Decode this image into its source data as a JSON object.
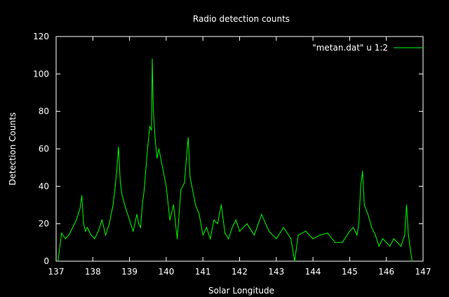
{
  "chart_data": {
    "type": "line",
    "title": "Radio detection counts",
    "xlabel": "Solar Longitude",
    "ylabel": "Detection Counts",
    "xlim": [
      137,
      147
    ],
    "ylim": [
      0,
      120
    ],
    "xticks": [
      "137",
      "138",
      "139",
      "140",
      "141",
      "142",
      "143",
      "144",
      "145",
      "146",
      "147"
    ],
    "yticks": [
      "0",
      "20",
      "40",
      "60",
      "80",
      "100",
      "120"
    ],
    "grid": false,
    "legend_position": "top-right",
    "series": [
      {
        "name": "\"metan.dat\" u 1:2",
        "color": "#00ff00",
        "x": [
          137.05,
          137.15,
          137.25,
          137.35,
          137.45,
          137.55,
          137.65,
          137.7,
          137.75,
          137.8,
          137.85,
          137.95,
          138.05,
          138.15,
          138.25,
          138.35,
          138.45,
          138.55,
          138.6,
          138.65,
          138.7,
          138.75,
          138.8,
          138.9,
          139.0,
          139.1,
          139.2,
          139.25,
          139.3,
          139.35,
          139.4,
          139.45,
          139.5,
          139.55,
          139.6,
          139.62,
          139.65,
          139.7,
          139.75,
          139.8,
          139.9,
          140.0,
          140.1,
          140.2,
          140.3,
          140.4,
          140.5,
          140.55,
          140.6,
          140.65,
          140.7,
          140.8,
          140.9,
          141.0,
          141.1,
          141.2,
          141.3,
          141.4,
          141.5,
          141.6,
          141.7,
          141.8,
          141.9,
          142.0,
          142.2,
          142.4,
          142.6,
          142.8,
          143.0,
          143.2,
          143.4,
          143.5,
          143.6,
          143.8,
          144.0,
          144.2,
          144.4,
          144.6,
          144.8,
          145.0,
          145.1,
          145.2,
          145.25,
          145.3,
          145.35,
          145.4,
          145.5,
          145.6,
          145.7,
          145.8,
          145.9,
          146.0,
          146.1,
          146.2,
          146.3,
          146.4,
          146.5,
          146.55,
          146.6,
          146.7
        ],
        "values": [
          0,
          15,
          12,
          14,
          18,
          22,
          28,
          35,
          20,
          16,
          18,
          14,
          12,
          16,
          22,
          14,
          20,
          30,
          38,
          48,
          61,
          42,
          35,
          28,
          22,
          16,
          25,
          20,
          18,
          30,
          38,
          50,
          62,
          72,
          70,
          108,
          80,
          65,
          55,
          60,
          50,
          40,
          22,
          30,
          12,
          38,
          42,
          55,
          66,
          45,
          40,
          30,
          25,
          14,
          18,
          12,
          22,
          20,
          30,
          15,
          12,
          18,
          22,
          16,
          20,
          14,
          25,
          16,
          12,
          18,
          12,
          0,
          14,
          16,
          12,
          14,
          15,
          10,
          10,
          16,
          18,
          14,
          20,
          40,
          48,
          30,
          25,
          18,
          14,
          8,
          12,
          10,
          8,
          12,
          10,
          8,
          14,
          30,
          14,
          0
        ]
      }
    ]
  }
}
